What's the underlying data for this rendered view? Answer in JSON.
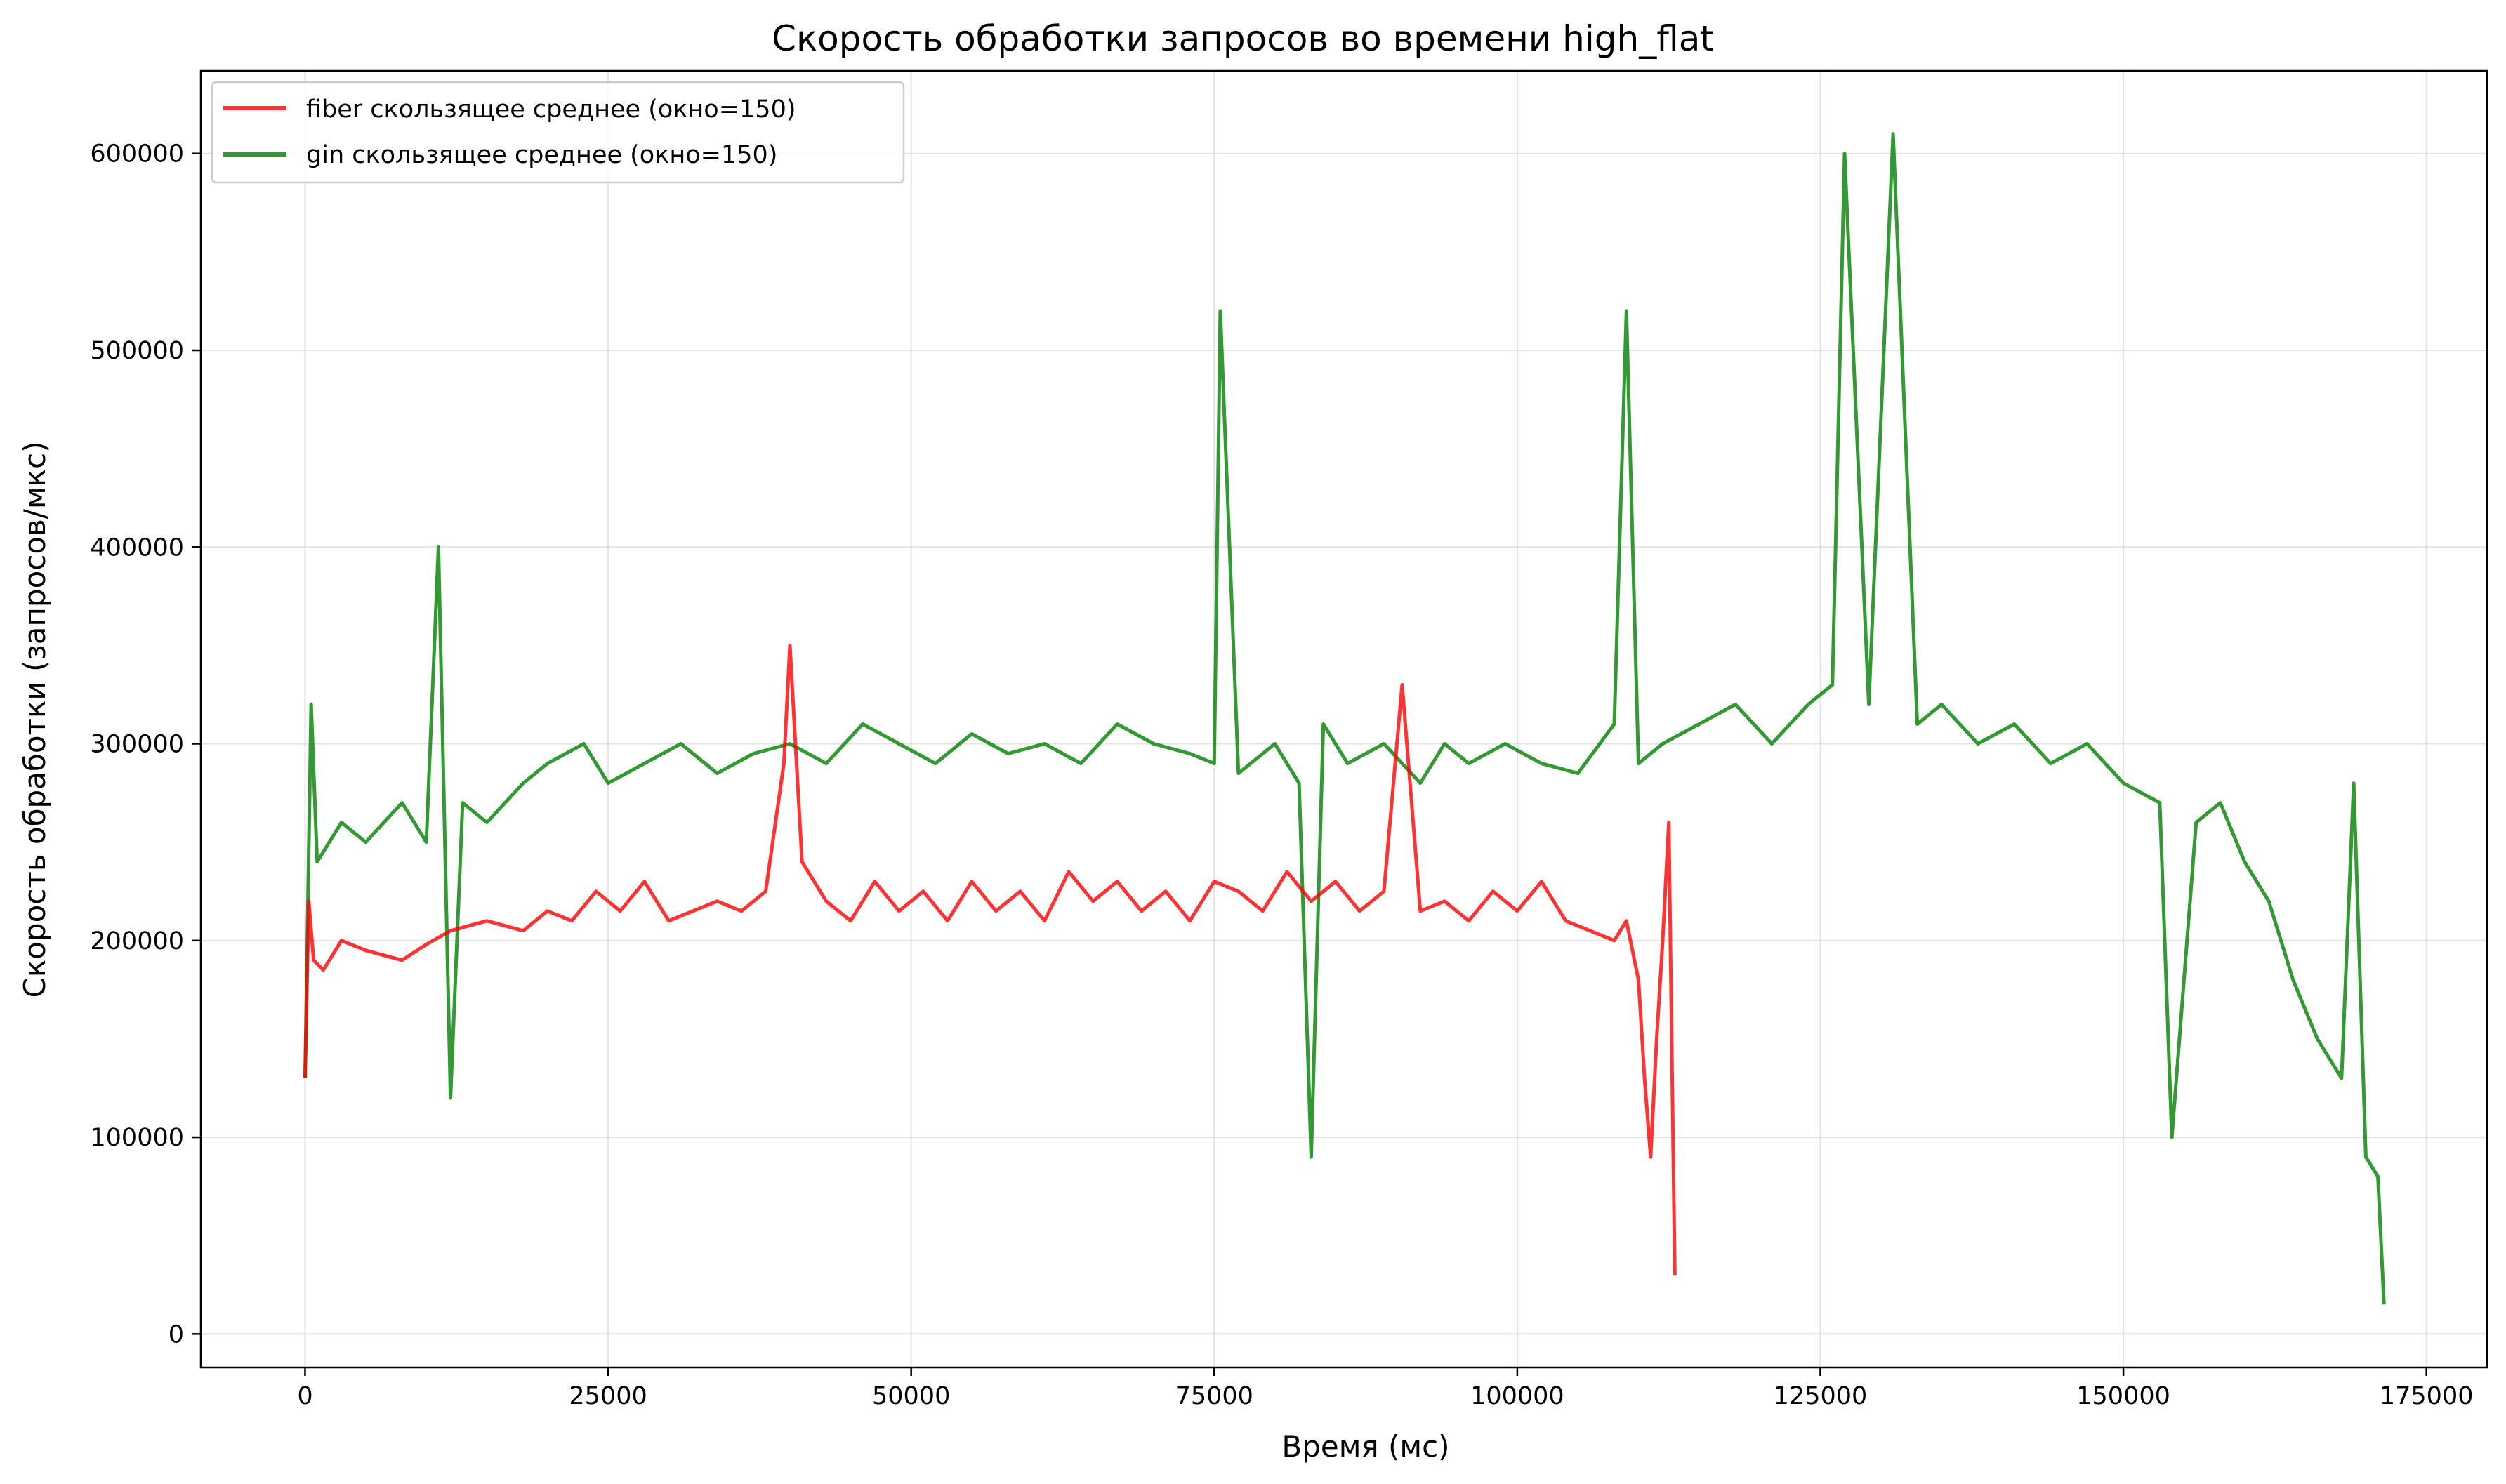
{
  "chart_data": {
    "type": "line",
    "title": "Скорость обработки запросов во времени high_flat",
    "xlabel": "Время (мс)",
    "ylabel": "Скорость обработки (запросов/мкс)",
    "xlim": [
      -8600,
      180000
    ],
    "ylim": [
      -17000,
      642000
    ],
    "xticks": [
      0,
      25000,
      50000,
      75000,
      100000,
      125000,
      150000,
      175000
    ],
    "xtick_labels": [
      "0",
      "25000",
      "50000",
      "75000",
      "100000",
      "125000",
      "150000",
      "175000"
    ],
    "yticks": [
      0,
      100000,
      200000,
      300000,
      400000,
      500000,
      600000
    ],
    "ytick_labels": [
      "0",
      "100000",
      "200000",
      "300000",
      "400000",
      "500000",
      "600000"
    ],
    "grid": true,
    "legend_position": "top-left",
    "series": [
      {
        "name": "fiber скользящее среднее (окно=150)",
        "color": "#ff0000",
        "opacity": 0.8,
        "x": [
          0,
          300,
          700,
          1500,
          3000,
          5000,
          8000,
          10000,
          12000,
          15000,
          18000,
          20000,
          22000,
          24000,
          26000,
          28000,
          30000,
          32000,
          34000,
          36000,
          38000,
          39500,
          40000,
          41000,
          43000,
          45000,
          47000,
          49000,
          51000,
          53000,
          55000,
          57000,
          59000,
          61000,
          63000,
          65000,
          67000,
          69000,
          71000,
          73000,
          75000,
          77000,
          79000,
          81000,
          83000,
          85000,
          87000,
          89000,
          90500,
          92000,
          94000,
          96000,
          98000,
          100000,
          102000,
          104000,
          106000,
          108000,
          109000,
          110000,
          110500,
          111000,
          111500,
          112000,
          112500,
          113000
        ],
        "y": [
          130000,
          220000,
          190000,
          185000,
          200000,
          195000,
          190000,
          198000,
          205000,
          210000,
          205000,
          215000,
          210000,
          225000,
          215000,
          230000,
          210000,
          215000,
          220000,
          215000,
          225000,
          290000,
          350000,
          240000,
          220000,
          210000,
          230000,
          215000,
          225000,
          210000,
          230000,
          215000,
          225000,
          210000,
          235000,
          220000,
          230000,
          215000,
          225000,
          210000,
          230000,
          225000,
          215000,
          235000,
          220000,
          230000,
          215000,
          225000,
          330000,
          215000,
          220000,
          210000,
          225000,
          215000,
          230000,
          210000,
          205000,
          200000,
          210000,
          180000,
          130000,
          90000,
          150000,
          200000,
          260000,
          30000
        ]
      },
      {
        "name": "gin скользящее среднее (окно=150)",
        "color": "#008000",
        "opacity": 0.8,
        "x": [
          0,
          500,
          1000,
          3000,
          5000,
          8000,
          10000,
          11000,
          12000,
          13000,
          15000,
          18000,
          20000,
          23000,
          25000,
          28000,
          31000,
          34000,
          37000,
          40000,
          43000,
          46000,
          49000,
          52000,
          55000,
          58000,
          61000,
          64000,
          67000,
          70000,
          73000,
          75000,
          75500,
          77000,
          80000,
          82000,
          83000,
          84000,
          86000,
          89000,
          92000,
          94000,
          96000,
          99000,
          102000,
          105000,
          108000,
          109000,
          110000,
          112000,
          115000,
          118000,
          121000,
          124000,
          126000,
          127000,
          129000,
          131000,
          133000,
          135000,
          138000,
          141000,
          144000,
          147000,
          150000,
          153000,
          154000,
          156000,
          158000,
          160000,
          162000,
          164000,
          166000,
          168000,
          169000,
          170000,
          171000,
          171500
        ],
        "y": [
          130000,
          320000,
          240000,
          260000,
          250000,
          270000,
          250000,
          400000,
          120000,
          270000,
          260000,
          280000,
          290000,
          300000,
          280000,
          290000,
          300000,
          285000,
          295000,
          300000,
          290000,
          310000,
          300000,
          290000,
          305000,
          295000,
          300000,
          290000,
          310000,
          300000,
          295000,
          290000,
          520000,
          285000,
          300000,
          280000,
          90000,
          310000,
          290000,
          300000,
          280000,
          300000,
          290000,
          300000,
          290000,
          285000,
          310000,
          520000,
          290000,
          300000,
          310000,
          320000,
          300000,
          320000,
          330000,
          600000,
          320000,
          610000,
          310000,
          320000,
          300000,
          310000,
          290000,
          300000,
          280000,
          270000,
          100000,
          260000,
          270000,
          240000,
          220000,
          180000,
          150000,
          130000,
          280000,
          90000,
          80000,
          15000
        ]
      }
    ]
  }
}
